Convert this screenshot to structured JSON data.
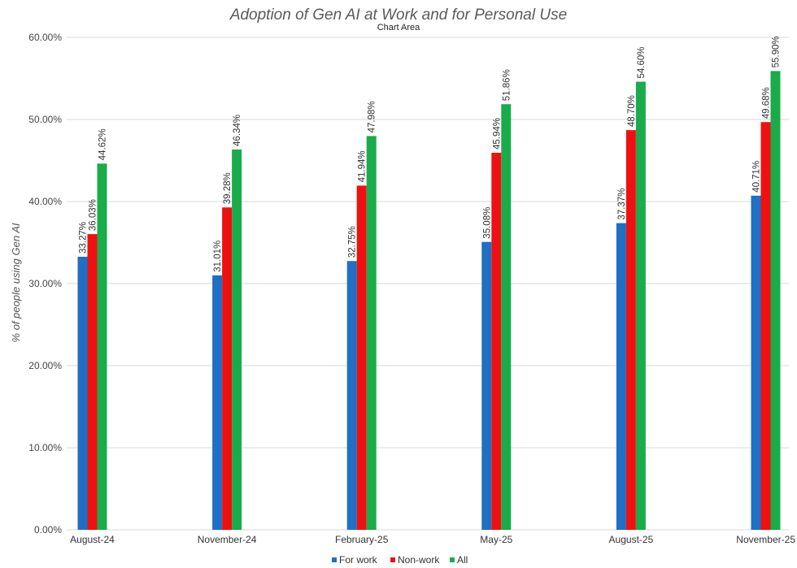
{
  "chart_data": {
    "type": "bar",
    "title": "Adoption of Gen AI at Work and for Personal Use",
    "subtitle": "Chart Area",
    "xlabel": "",
    "ylabel": "% of people using Gen AI",
    "ylim": [
      0,
      60
    ],
    "yticks": [
      "0.00%",
      "10.00%",
      "20.00%",
      "30.00%",
      "40.00%",
      "50.00%",
      "60.00%"
    ],
    "categories": [
      "August-24",
      "November-24",
      "February-25",
      "May-25",
      "August-25",
      "November-25"
    ],
    "series": [
      {
        "name": "For work",
        "color": "#1f6fc4",
        "values": [
          33.27,
          31.01,
          32.75,
          35.08,
          37.37,
          40.71
        ],
        "labels": [
          "33.27%",
          "31.01%",
          "32.75%",
          "35.08%",
          "37.37%",
          "40.71%"
        ]
      },
      {
        "name": "Non-work",
        "color": "#ee1111",
        "values": [
          36.03,
          39.28,
          41.94,
          45.94,
          48.7,
          49.68
        ],
        "labels": [
          "36.03%",
          "39.28%",
          "41.94%",
          "45.94%",
          "48.70%",
          "49.68%"
        ]
      },
      {
        "name": "All",
        "color": "#1aab4a",
        "values": [
          44.62,
          46.34,
          47.98,
          51.86,
          54.6,
          55.9
        ],
        "labels": [
          "44.62%",
          "46.34%",
          "47.98%",
          "51.86%",
          "54.60%",
          "55.90%"
        ]
      }
    ],
    "grid": true,
    "legend_position": "bottom"
  }
}
